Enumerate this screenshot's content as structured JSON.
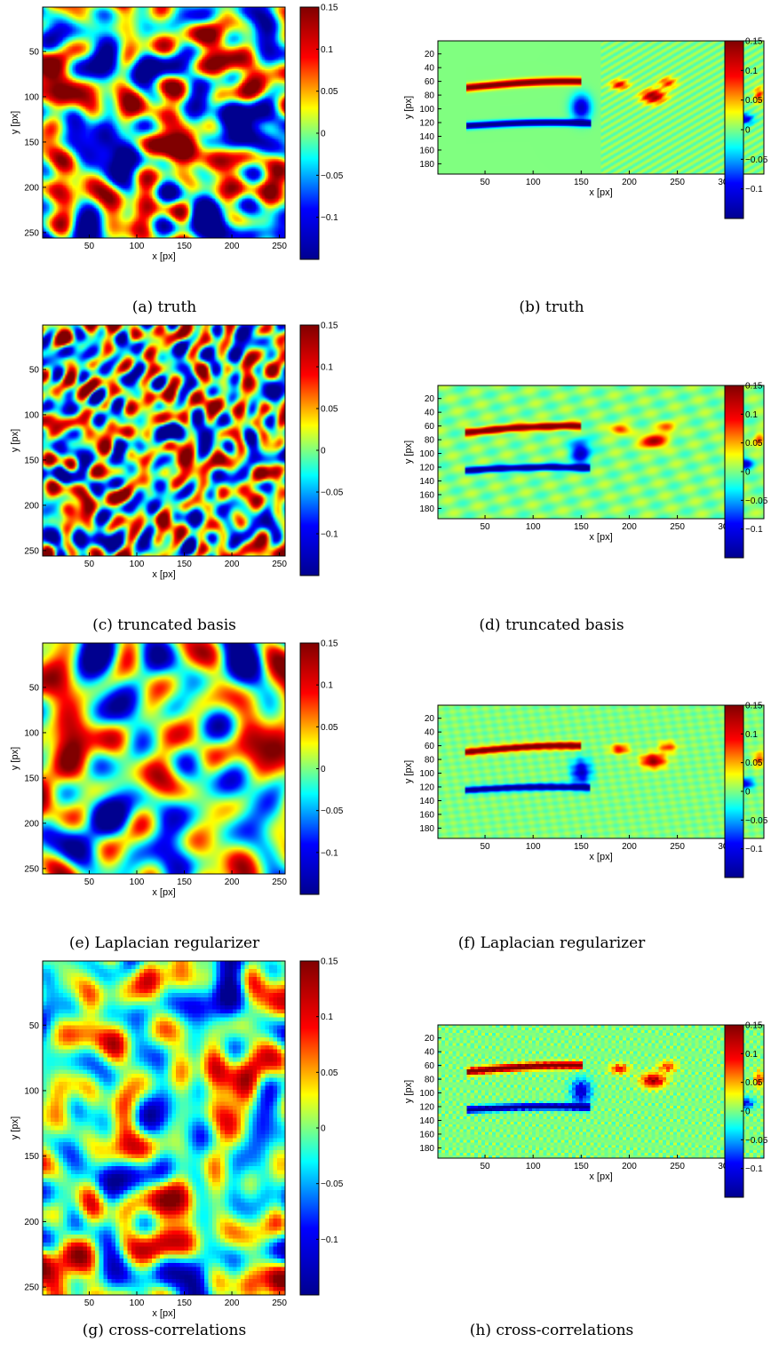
{
  "figure": {
    "colorscale": [
      "#00008f",
      "#0000ff",
      "#00ffff",
      "#ffff00",
      "#ff0000",
      "#800000"
    ]
  },
  "chart_data": [
    {
      "id": "a",
      "type": "heatmap",
      "caption": "(a) truth",
      "field": "turbulence",
      "style": "sharp",
      "xlabel": "x [px]",
      "ylabel": "y [px]",
      "xlim": [
        1,
        256
      ],
      "ylim": [
        1,
        256
      ],
      "xticks": [
        "50",
        "100",
        "150",
        "200",
        "250"
      ],
      "yticks": [
        "50",
        "100",
        "150",
        "200",
        "250"
      ],
      "colorbar": {
        "range": [
          -0.15,
          0.15
        ],
        "ticks": [
          "0.15",
          "0.1",
          "0.05",
          "0",
          "−0.05",
          "−0.1"
        ]
      }
    },
    {
      "id": "b",
      "type": "heatmap",
      "caption": "(b) truth",
      "field": "cylinder-wake",
      "style": "sharp",
      "xlabel": "x [px]",
      "ylabel": "y [px]",
      "xlim": [
        1,
        340
      ],
      "ylim": [
        1,
        195
      ],
      "xticks": [
        "50",
        "100",
        "150",
        "200",
        "250",
        "300"
      ],
      "yticks": [
        "20",
        "40",
        "60",
        "80",
        "100",
        "120",
        "140",
        "160",
        "180"
      ],
      "colorbar": {
        "range": [
          -0.15,
          0.15
        ],
        "ticks": [
          "0.15",
          "0.1",
          "0.05",
          "0",
          "−0.05",
          "−0.1"
        ]
      }
    },
    {
      "id": "c",
      "type": "heatmap",
      "caption": "(c) truncated basis",
      "field": "turbulence",
      "style": "ringing",
      "xlabel": "x [px]",
      "ylabel": "y [px]",
      "xlim": [
        1,
        256
      ],
      "ylim": [
        1,
        256
      ],
      "xticks": [
        "50",
        "100",
        "150",
        "200",
        "250"
      ],
      "yticks": [
        "50",
        "100",
        "150",
        "200",
        "250"
      ],
      "colorbar": {
        "range": [
          -0.15,
          0.15
        ],
        "ticks": [
          "0.15",
          "0.1",
          "0.05",
          "0",
          "−0.05",
          "−0.1"
        ]
      }
    },
    {
      "id": "d",
      "type": "heatmap",
      "caption": "(d) truncated basis",
      "field": "cylinder-wake",
      "style": "ringing",
      "xlabel": "x [px]",
      "ylabel": "y [px]",
      "xlim": [
        1,
        340
      ],
      "ylim": [
        1,
        195
      ],
      "xticks": [
        "50",
        "100",
        "150",
        "200",
        "250",
        "300"
      ],
      "yticks": [
        "20",
        "40",
        "60",
        "80",
        "100",
        "120",
        "140",
        "160",
        "180"
      ],
      "colorbar": {
        "range": [
          -0.15,
          0.15
        ],
        "ticks": [
          "0.15",
          "0.1",
          "0.05",
          "0",
          "−0.05",
          "−0.1"
        ]
      }
    },
    {
      "id": "e",
      "type": "heatmap",
      "caption": "(e) Laplacian regularizer",
      "field": "turbulence",
      "style": "smooth",
      "xlabel": "x [px]",
      "ylabel": "y [px]",
      "xlim": [
        1,
        256
      ],
      "ylim": [
        1,
        256
      ],
      "xticks": [
        "50",
        "100",
        "150",
        "200",
        "250"
      ],
      "yticks": [
        "50",
        "100",
        "150",
        "200",
        "250"
      ],
      "colorbar": {
        "range": [
          -0.15,
          0.15
        ],
        "ticks": [
          "0.15",
          "0.1",
          "0.05",
          "0",
          "−0.05",
          "−0.1"
        ]
      }
    },
    {
      "id": "f",
      "type": "heatmap",
      "caption": "(f) Laplacian regularizer",
      "field": "cylinder-wake",
      "style": "smooth",
      "xlabel": "x [px]",
      "ylabel": "y [px]",
      "xlim": [
        1,
        340
      ],
      "ylim": [
        1,
        195
      ],
      "xticks": [
        "50",
        "100",
        "150",
        "200",
        "250",
        "300"
      ],
      "yticks": [
        "20",
        "40",
        "60",
        "80",
        "100",
        "120",
        "140",
        "160",
        "180"
      ],
      "colorbar": {
        "range": [
          -0.15,
          0.15
        ],
        "ticks": [
          "0.15",
          "0.1",
          "0.05",
          "0",
          "−0.05",
          "−0.1"
        ]
      }
    },
    {
      "id": "g",
      "type": "heatmap",
      "caption": "(g) cross-correlations",
      "field": "turbulence",
      "style": "blocky",
      "xlabel": "x [px]",
      "ylabel": "y [px]",
      "xlim": [
        1,
        256
      ],
      "ylim": [
        1,
        256
      ],
      "xticks": [
        "50",
        "100",
        "150",
        "200",
        "250"
      ],
      "yticks": [
        "50",
        "100",
        "150",
        "200",
        "250"
      ],
      "colorbar": {
        "range": [
          -0.15,
          0.15
        ],
        "ticks": [
          "0.15",
          "0.1",
          "0.05",
          "0",
          "−0.05",
          "−0.1"
        ]
      }
    },
    {
      "id": "h",
      "type": "heatmap",
      "caption": "(h) cross-correlations",
      "field": "cylinder-wake",
      "style": "blocky",
      "xlabel": "x [px]",
      "ylabel": "y [px]",
      "xlim": [
        1,
        340
      ],
      "ylim": [
        1,
        195
      ],
      "xticks": [
        "50",
        "100",
        "150",
        "200",
        "250",
        "300"
      ],
      "yticks": [
        "20",
        "40",
        "60",
        "80",
        "100",
        "120",
        "140",
        "160",
        "180"
      ],
      "colorbar": {
        "range": [
          -0.15,
          0.15
        ],
        "ticks": [
          "0.15",
          "0.1",
          "0.05",
          "0",
          "−0.05",
          "−0.1"
        ]
      }
    }
  ]
}
